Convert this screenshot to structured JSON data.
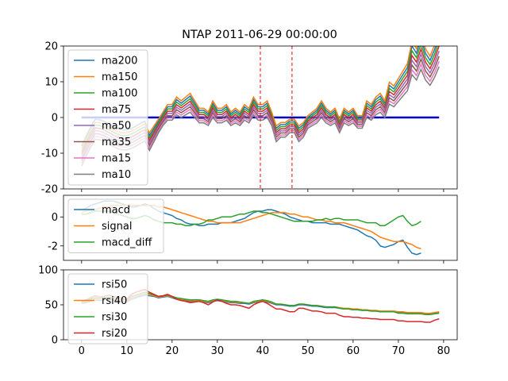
{
  "chart_data": [
    {
      "type": "line",
      "title": "NTAP 2011-06-29 00:00:00",
      "ylim": [
        -20,
        20
      ],
      "xlim": [
        -4,
        83
      ],
      "yticks": [
        -20,
        -10,
        0,
        10,
        20
      ],
      "legend": "top-left",
      "vlines": [
        39.5,
        46.5
      ],
      "hline": 0,
      "colors": {
        "vline": "#ff0000",
        "hline": "#0000cc"
      },
      "series": [
        {
          "name": "ma200",
          "color": "#1f77b4",
          "offset": 0.0
        },
        {
          "name": "ma150",
          "color": "#ff7f0e",
          "offset": 0.5
        },
        {
          "name": "ma100",
          "color": "#2ca02c",
          "offset": -0.5
        },
        {
          "name": "ma75",
          "color": "#d62728",
          "offset": -1.0
        },
        {
          "name": "ma50",
          "color": "#9467bd",
          "offset": -1.5
        },
        {
          "name": "ma35",
          "color": "#8c564b",
          "offset": -2.0
        },
        {
          "name": "ma15",
          "color": "#e377c2",
          "offset": -2.5
        },
        {
          "name": "ma10",
          "color": "#7f7f7f",
          "offset": -3.0
        }
      ],
      "x_start": 15,
      "base_values": [
        -5,
        -3,
        -1,
        1,
        3,
        3,
        5,
        4,
        5,
        6,
        4,
        2,
        2,
        1,
        4,
        2,
        2,
        3,
        1,
        2,
        1,
        3,
        2,
        5,
        3,
        3,
        4,
        1,
        -3,
        -2,
        -2,
        -1,
        -1,
        -3,
        -2,
        0,
        1,
        2,
        4,
        2,
        1,
        2,
        -1,
        2,
        1,
        2,
        0,
        0,
        4,
        3,
        5,
        6,
        4,
        9,
        8,
        10,
        12,
        14,
        20,
        18,
        22,
        18,
        16,
        19,
        23
      ]
    },
    {
      "type": "line",
      "ylim": [
        -3,
        1.5
      ],
      "xlim": [
        -4,
        83
      ],
      "yticks": [
        -2,
        0
      ],
      "legend": "top-left",
      "series": [
        {
          "name": "macd",
          "color": "#1f77b4",
          "values": [
            0.5,
            0.6,
            0.8,
            0.9,
            1.0,
            1.1,
            1.1,
            1.1,
            1.0,
            0.9,
            0.8,
            0.7,
            0.7,
            0.8,
            0.9,
            0.8,
            0.6,
            0.4,
            0.3,
            0.2,
            0.1,
            -0.1,
            -0.2,
            -0.4,
            -0.5,
            -0.5,
            -0.6,
            -0.6,
            -0.5,
            -0.5,
            -0.5,
            -0.4,
            -0.4,
            -0.4,
            -0.3,
            -0.2,
            -0.1,
            0.1,
            0.3,
            0.4,
            0.4,
            0.5,
            0.5,
            0.4,
            0.3,
            0.2,
            0.0,
            -0.1,
            -0.2,
            -0.3,
            -0.3,
            -0.4,
            -0.4,
            -0.4,
            -0.4,
            -0.5,
            -0.5,
            -0.5,
            -0.6,
            -0.7,
            -0.8,
            -0.9,
            -1.1,
            -1.3,
            -1.4,
            -1.6,
            -2.0,
            -2.1,
            -2.0,
            -1.9,
            -1.7,
            -1.6,
            -2.1,
            -2.5,
            -2.6,
            -2.5
          ]
        },
        {
          "name": "signal",
          "color": "#ff7f0e",
          "values": [
            0.3,
            0.4,
            0.5,
            0.5,
            0.6,
            0.7,
            0.7,
            0.8,
            0.8,
            0.8,
            0.8,
            0.8,
            0.8,
            0.8,
            0.8,
            0.8,
            0.8,
            0.7,
            0.7,
            0.6,
            0.5,
            0.4,
            0.3,
            0.2,
            0.1,
            0.0,
            -0.1,
            -0.2,
            -0.3,
            -0.3,
            -0.4,
            -0.4,
            -0.4,
            -0.4,
            -0.4,
            -0.4,
            -0.3,
            -0.2,
            -0.1,
            0.0,
            0.1,
            0.2,
            0.3,
            0.3,
            0.3,
            0.3,
            0.2,
            0.2,
            0.1,
            0.0,
            0.0,
            -0.1,
            -0.2,
            -0.2,
            -0.3,
            -0.3,
            -0.4,
            -0.4,
            -0.4,
            -0.5,
            -0.6,
            -0.7,
            -0.8,
            -0.9,
            -1.0,
            -1.2,
            -1.4,
            -1.5,
            -1.6,
            -1.7,
            -1.7,
            -1.7,
            -1.8,
            -1.9,
            -2.1,
            -2.2
          ]
        },
        {
          "name": "macd_diff",
          "color": "#2ca02c",
          "values": [
            0.2,
            0.2,
            0.3,
            0.4,
            0.4,
            0.4,
            0.4,
            0.3,
            0.2,
            0.1,
            0.0,
            -0.1,
            -0.1,
            0.0,
            0.1,
            0.0,
            -0.2,
            -0.3,
            -0.4,
            -0.4,
            -0.4,
            -0.5,
            -0.5,
            -0.6,
            -0.6,
            -0.5,
            -0.5,
            -0.4,
            -0.2,
            -0.2,
            -0.1,
            0.0,
            0.0,
            0.0,
            0.1,
            0.2,
            0.2,
            0.3,
            0.4,
            0.4,
            0.3,
            0.3,
            0.2,
            0.1,
            0.0,
            -0.1,
            -0.2,
            -0.3,
            -0.3,
            -0.3,
            -0.3,
            -0.3,
            -0.2,
            -0.2,
            -0.1,
            -0.2,
            -0.1,
            -0.1,
            -0.2,
            -0.2,
            -0.2,
            -0.2,
            -0.3,
            -0.4,
            -0.4,
            -0.4,
            -0.6,
            -0.6,
            -0.4,
            -0.2,
            0.0,
            0.1,
            -0.3,
            -0.6,
            -0.5,
            -0.3
          ]
        }
      ]
    },
    {
      "type": "line",
      "ylim": [
        0,
        100
      ],
      "xlim": [
        -4,
        83
      ],
      "yticks": [
        0,
        50,
        100
      ],
      "xticks": [
        0,
        10,
        20,
        30,
        40,
        50,
        60,
        70,
        80
      ],
      "legend": "top-left",
      "series": [
        {
          "name": "rsi50",
          "color": "#1f77b4",
          "values": [
            52,
            53,
            55,
            57,
            56,
            57,
            58,
            57,
            56,
            55,
            54,
            58,
            60,
            62,
            64,
            63,
            62,
            60,
            61,
            62,
            60,
            58,
            57,
            56,
            55,
            55,
            55,
            54,
            53,
            55,
            56,
            55,
            54,
            53,
            53,
            52,
            52,
            51,
            53,
            54,
            55,
            54,
            52,
            50,
            50,
            49,
            48,
            48,
            50,
            50,
            49,
            48,
            48,
            47,
            46,
            46,
            46,
            45,
            44,
            44,
            43,
            43,
            42,
            42,
            41,
            41,
            40,
            40,
            40,
            40,
            39,
            39,
            38,
            38,
            38,
            38,
            37,
            37,
            38,
            39
          ]
        },
        {
          "name": "rsi40",
          "color": "#ff7f0e",
          "values": [
            53,
            54,
            56,
            58,
            57,
            58,
            59,
            58,
            57,
            56,
            55,
            60,
            62,
            64,
            66,
            64,
            63,
            61,
            62,
            63,
            61,
            59,
            58,
            57,
            56,
            56,
            56,
            55,
            54,
            56,
            57,
            56,
            55,
            54,
            54,
            53,
            53,
            52,
            54,
            55,
            56,
            55,
            53,
            51,
            51,
            50,
            49,
            49,
            51,
            51,
            50,
            49,
            49,
            48,
            47,
            47,
            47,
            46,
            45,
            45,
            44,
            44,
            43,
            43,
            42,
            42,
            41,
            41,
            41,
            41,
            40,
            40,
            39,
            39,
            39,
            39,
            38,
            38,
            39,
            40
          ]
        },
        {
          "name": "rsi30",
          "color": "#2ca02c",
          "values": [
            54,
            55,
            58,
            60,
            59,
            60,
            61,
            60,
            59,
            58,
            57,
            62,
            64,
            66,
            68,
            66,
            64,
            62,
            63,
            64,
            62,
            60,
            59,
            58,
            57,
            57,
            57,
            56,
            55,
            57,
            58,
            57,
            56,
            55,
            55,
            54,
            53,
            52,
            55,
            56,
            57,
            56,
            54,
            51,
            51,
            50,
            49,
            49,
            51,
            51,
            50,
            49,
            49,
            48,
            47,
            47,
            47,
            45,
            44,
            44,
            43,
            43,
            42,
            42,
            41,
            41,
            40,
            40,
            40,
            40,
            38,
            38,
            37,
            37,
            37,
            37,
            36,
            36,
            37,
            38
          ]
        },
        {
          "name": "rsi20",
          "color": "#d62728",
          "values": [
            55,
            57,
            60,
            63,
            61,
            62,
            64,
            62,
            61,
            59,
            58,
            65,
            68,
            70,
            72,
            68,
            65,
            62,
            63,
            65,
            62,
            58,
            56,
            55,
            53,
            54,
            55,
            53,
            50,
            54,
            57,
            55,
            52,
            50,
            50,
            49,
            47,
            45,
            50,
            53,
            55,
            52,
            48,
            44,
            44,
            42,
            40,
            40,
            45,
            45,
            43,
            41,
            41,
            40,
            38,
            38,
            38,
            35,
            33,
            33,
            32,
            32,
            31,
            31,
            30,
            30,
            29,
            29,
            29,
            29,
            27,
            27,
            26,
            26,
            26,
            26,
            25,
            25,
            28,
            30
          ]
        }
      ]
    }
  ]
}
